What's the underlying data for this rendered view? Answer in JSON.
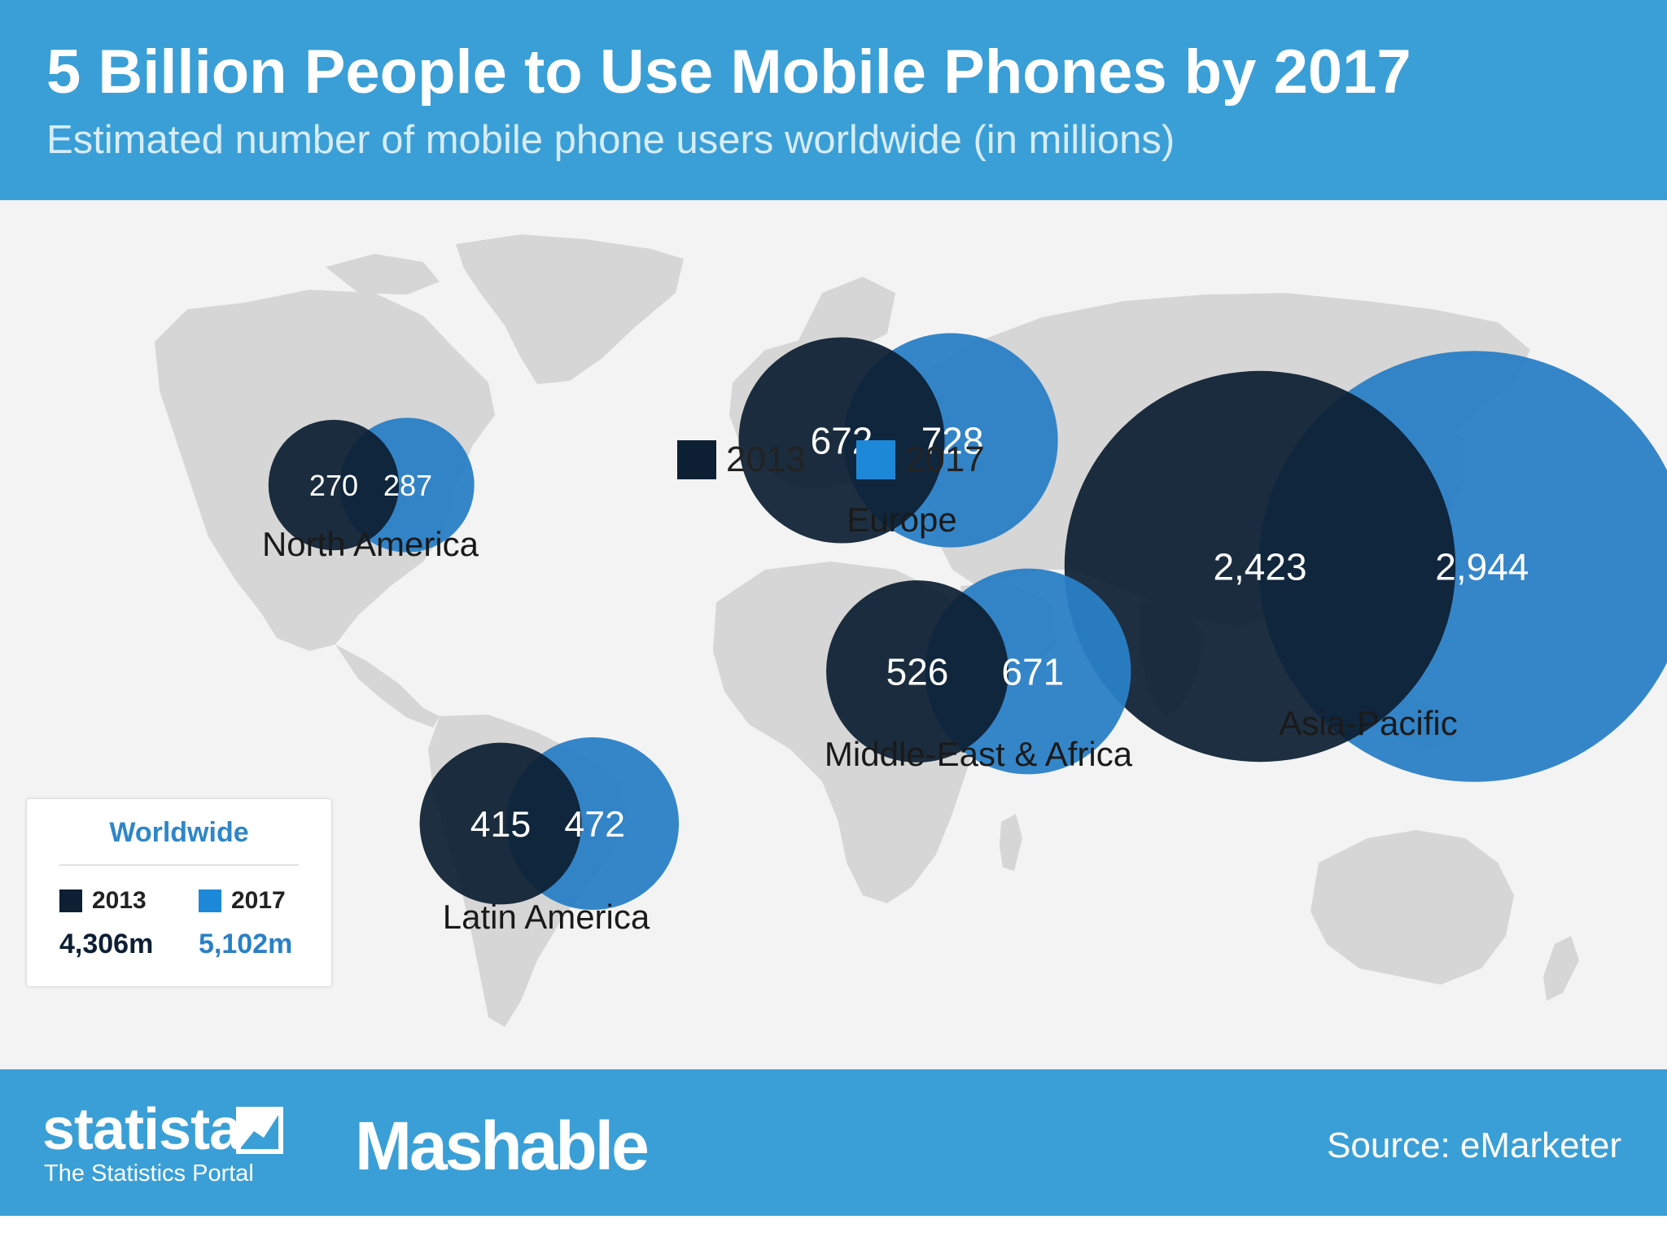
{
  "header": {
    "title": "5 Billion People to Use Mobile Phones by 2017",
    "subtitle": "Estimated number of mobile phone users worldwide (in millions)"
  },
  "colors": {
    "header_bg": "#3a9fd6",
    "series_2013": "#0d1f33",
    "series_2017": "#2a80c6",
    "swatch_2017": "#1e88d8",
    "worldwide_2017_text": "#2a80c6",
    "map_land": "#d6d6d6",
    "plot_bg": "#f3f3f3"
  },
  "legend": {
    "items": [
      {
        "label": "2013",
        "color": "#0d1f33"
      },
      {
        "label": "2017",
        "color": "#1e88d8"
      }
    ]
  },
  "chart_data": {
    "type": "bubble",
    "title": "5 Billion People to Use Mobile Phones by 2017",
    "subtitle": "Estimated number of mobile phone users worldwide (in millions)",
    "series_names": [
      "2013",
      "2017"
    ],
    "regions": [
      {
        "name": "North America",
        "v2013": 270,
        "v2017": 287,
        "label2013": "270",
        "label2017": "287"
      },
      {
        "name": "Europe",
        "v2013": 672,
        "v2017": 728,
        "label2013": "672",
        "label2017": "728"
      },
      {
        "name": "Asia-Pacific",
        "v2013": 2423,
        "v2017": 2944,
        "label2013": "2,423",
        "label2017": "2,944"
      },
      {
        "name": "Middle-East & Africa",
        "v2013": 526,
        "v2017": 671,
        "label2013": "526",
        "label2017": "671"
      },
      {
        "name": "Latin America",
        "v2013": 415,
        "v2017": 472,
        "label2013": "415",
        "label2017": "472"
      }
    ],
    "legend_position": "top-center"
  },
  "worldwide": {
    "title": "Worldwide",
    "years": [
      "2013",
      "2017"
    ],
    "totals": [
      "4,306m",
      "5,102m"
    ]
  },
  "footer": {
    "statista_logo": "statista",
    "statista_tagline": "The Statistics Portal",
    "mashable_logo": "Mashable",
    "source": "Source: eMarketer"
  }
}
